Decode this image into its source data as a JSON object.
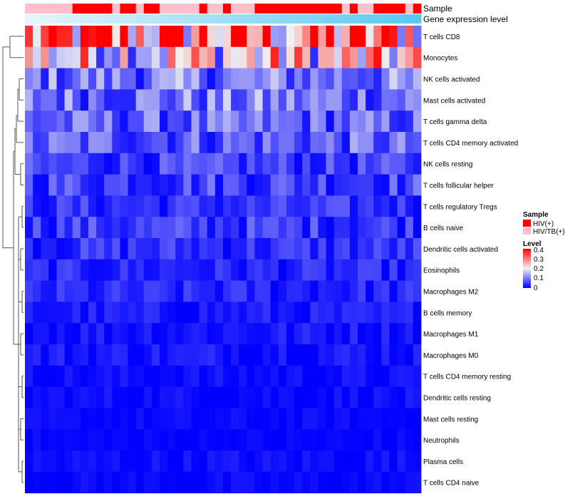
{
  "chart_data": {
    "type": "heatmap",
    "title": "",
    "columns_count": 50,
    "rows": [
      "T cells CD8",
      "Monocytes",
      "NK cells activated",
      "Mast cells activated",
      "T cells gamma delta",
      "T cells CD4 memory activated",
      "NK cells resting",
      "T cells follicular helper",
      "T cells regulatory  Tregs",
      "B cells naive",
      "Dendritic cells activated",
      "Eosinophils",
      "Macrophages M2",
      "B cells memory",
      "Macrophages M1",
      "Macrophages M0",
      "T cells CD4 memory resting",
      "Dendritic cells resting",
      "Mast cells resting",
      "Neutrophils",
      "Plasma cells",
      "T cells CD4 naive"
    ],
    "row_means": [
      0.3,
      0.22,
      0.1,
      0.1,
      0.08,
      0.08,
      0.05,
      0.06,
      0.04,
      0.05,
      0.04,
      0.03,
      0.03,
      0.02,
      0.02,
      0.02,
      0.01,
      0.01,
      0.005,
      0.003,
      0.01,
      0.005
    ],
    "sample_annotation": [
      "HIV/TB(+)",
      "HIV/TB(+)",
      "HIV/TB(+)",
      "HIV/TB(+)",
      "HIV/TB(+)",
      "HIV/TB(+)",
      "HIV(+)",
      "HIV(+)",
      "HIV(+)",
      "HIV(+)",
      "HIV(+)",
      "HIV/TB(+)",
      "HIV(+)",
      "HIV(+)",
      "HIV/TB(+)",
      "HIV(+)",
      "HIV(+)",
      "HIV/TB(+)",
      "HIV/TB(+)",
      "HIV/TB(+)",
      "HIV/TB(+)",
      "HIV/TB(+)",
      "HIV(+)",
      "HIV/TB(+)",
      "HIV/TB(+)",
      "HIV(+)",
      "HIV/TB(+)",
      "HIV/TB(+)",
      "HIV/TB(+)",
      "HIV(+)",
      "HIV(+)",
      "HIV(+)",
      "HIV(+)",
      "HIV(+)",
      "HIV(+)",
      "HIV(+)",
      "HIV(+)",
      "HIV(+)",
      "HIV(+)",
      "HIV(+)",
      "HIV/TB(+)",
      "HIV(+)",
      "HIV/TB(+)",
      "HIV/TB(+)",
      "HIV(+)",
      "HIV(+)",
      "HIV(+)",
      "HIV(+)",
      "HIV/TB(+)",
      "HIV(+)"
    ],
    "annotation_tracks": [
      "Sample",
      "Gene expression level"
    ],
    "legend": {
      "sample_title": "Sample",
      "sample_entries": [
        {
          "label": "HIV(+)",
          "color": "#ff0000"
        },
        {
          "label": "HIV/TB(+)",
          "color": "#ffc0cb"
        }
      ],
      "level_title": "Level",
      "level_ticks": [
        "0.4",
        "0.3",
        "0.2",
        "0.1",
        "0"
      ],
      "level_range": [
        0,
        0.42
      ]
    },
    "colors": {
      "low": "#0000ff",
      "mid": "#f2f2f2",
      "high": "#ff0000",
      "expr_low": "#e6f5fb",
      "expr_high": "#5bc8f0",
      "dendrogram": "#555555"
    }
  }
}
